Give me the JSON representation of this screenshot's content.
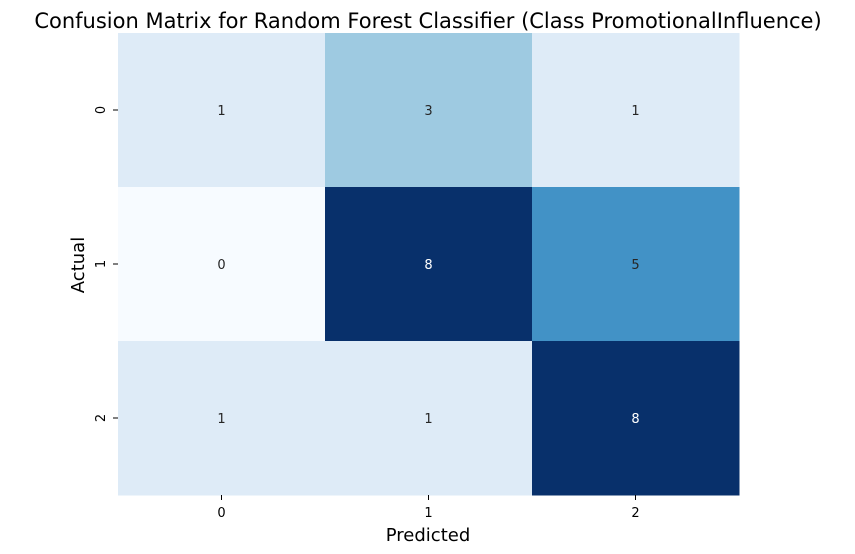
{
  "chart_data": {
    "type": "heatmap",
    "title": "Confusion Matrix for Random Forest Classifier (Class PromotionalInfluence)",
    "xlabel": "Predicted",
    "ylabel": "Actual",
    "x_categories": [
      "0",
      "1",
      "2"
    ],
    "y_categories": [
      "0",
      "1",
      "2"
    ],
    "values": [
      [
        1,
        3,
        1
      ],
      [
        0,
        8,
        5
      ],
      [
        1,
        1,
        8
      ]
    ],
    "colormap": "Blues",
    "colorbar": false,
    "annotations": true
  }
}
